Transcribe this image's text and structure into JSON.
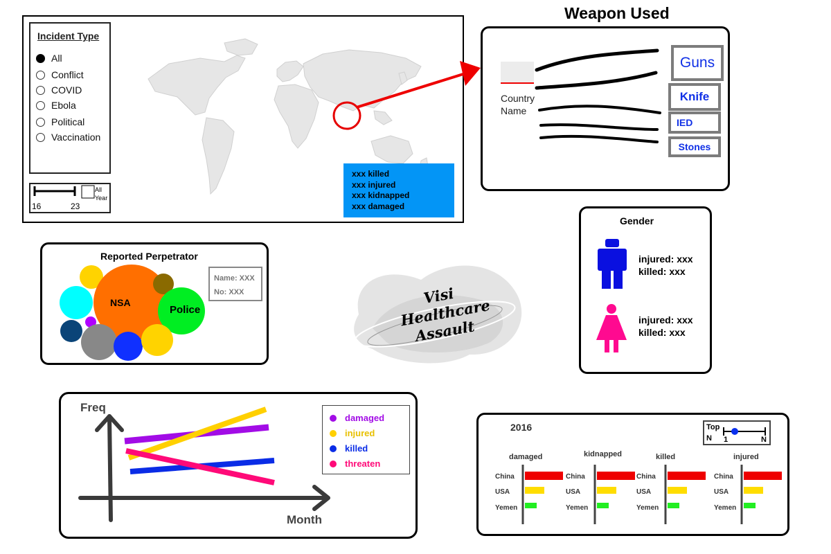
{
  "map": {
    "incident_type": {
      "title": "Incident Type",
      "options": [
        "All",
        "Conflict",
        "COVID",
        "Ebola",
        "Political",
        "Vaccination"
      ],
      "selected": "All"
    },
    "year_range": {
      "min_label": "16",
      "max_label": "23",
      "all_label_1": "All",
      "all_label_2": "Year"
    },
    "stats": [
      "xxx killed",
      "xxx injured",
      "xxx kidnapped",
      "xxx damaged"
    ]
  },
  "weapon": {
    "title": "Weapon Used",
    "country_label_1": "Country",
    "country_label_2": "Name",
    "items": [
      "Guns",
      "Knife",
      "IED",
      "Stones"
    ]
  },
  "gender": {
    "title": "Gender",
    "male": {
      "injured": "injured: xxx",
      "killed": "killed: xxx"
    },
    "female": {
      "injured": "injured: xxx",
      "killed": "killed: xxx"
    }
  },
  "perpetrator": {
    "title": "Reported Perpetrator",
    "big_label": "NSA",
    "second_label": "Police",
    "tooltip": {
      "name": "Name: XXX",
      "no": "No: XXX"
    }
  },
  "logo": {
    "line1": "Visi",
    "line2": "Healthcare",
    "line3": "Assault"
  },
  "freq_chart": {
    "y_label": "Freq",
    "x_label": "Month",
    "legend": [
      {
        "name": "damaged",
        "color": "#a20ce6"
      },
      {
        "name": "injured",
        "color": "#ffd000"
      },
      {
        "name": "killed",
        "color": "#0a2ce6"
      },
      {
        "name": "threaten",
        "color": "#ff0a78"
      }
    ]
  },
  "topn": {
    "year": "2016",
    "slider_top": "Top",
    "slider_n": "N",
    "slider_1": "1",
    "slider_n2": "N",
    "countries": [
      "China",
      "USA",
      "Yemen"
    ],
    "colors": [
      "#ee0000",
      "#ffdd00",
      "#22ee22"
    ],
    "categories": [
      {
        "name": "damaged",
        "values": [
          1.0,
          0.5,
          0.3
        ]
      },
      {
        "name": "kidnapped",
        "values": [
          1.0,
          0.5,
          0.3
        ]
      },
      {
        "name": "killed",
        "values": [
          1.0,
          0.5,
          0.3
        ]
      },
      {
        "name": "injured",
        "values": [
          1.0,
          0.5,
          0.3
        ]
      }
    ]
  }
}
